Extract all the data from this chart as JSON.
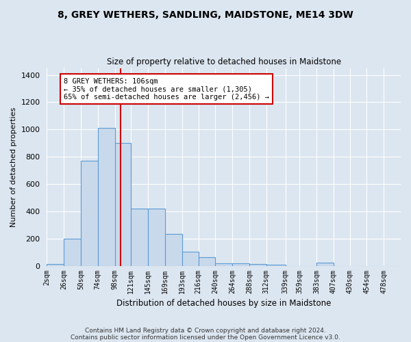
{
  "title": "8, GREY WETHERS, SANDLING, MAIDSTONE, ME14 3DW",
  "subtitle": "Size of property relative to detached houses in Maidstone",
  "xlabel": "Distribution of detached houses by size in Maidstone",
  "ylabel": "Number of detached properties",
  "bin_labels": [
    "2sqm",
    "26sqm",
    "50sqm",
    "74sqm",
    "98sqm",
    "121sqm",
    "145sqm",
    "169sqm",
    "193sqm",
    "216sqm",
    "240sqm",
    "264sqm",
    "288sqm",
    "312sqm",
    "339sqm",
    "359sqm",
    "383sqm",
    "407sqm",
    "430sqm",
    "454sqm",
    "478sqm"
  ],
  "bar_values": [
    15,
    200,
    770,
    1010,
    900,
    420,
    420,
    235,
    105,
    65,
    20,
    20,
    15,
    10,
    0,
    0,
    25,
    0,
    0,
    0,
    0
  ],
  "bar_color": "#c9d9ec",
  "bar_edge_color": "#5b9bd5",
  "property_line_x": 106,
  "bin_edges": [
    2,
    26,
    50,
    74,
    98,
    121,
    145,
    169,
    193,
    216,
    240,
    264,
    288,
    312,
    339,
    359,
    383,
    407,
    430,
    454,
    478,
    502
  ],
  "annotation_title": "8 GREY WETHERS: 106sqm",
  "annotation_line1": "← 35% of detached houses are smaller (1,305)",
  "annotation_line2": "65% of semi-detached houses are larger (2,456) →",
  "annotation_box_color": "#ffffff",
  "annotation_box_edge": "#cc0000",
  "vline_color": "#cc0000",
  "ylim": [
    0,
    1450
  ],
  "yticks": [
    0,
    200,
    400,
    600,
    800,
    1000,
    1200,
    1400
  ],
  "footer1": "Contains HM Land Registry data © Crown copyright and database right 2024.",
  "footer2": "Contains public sector information licensed under the Open Government Licence v3.0.",
  "bg_color": "#dce6f0",
  "plot_bg_color": "#dce6f0"
}
